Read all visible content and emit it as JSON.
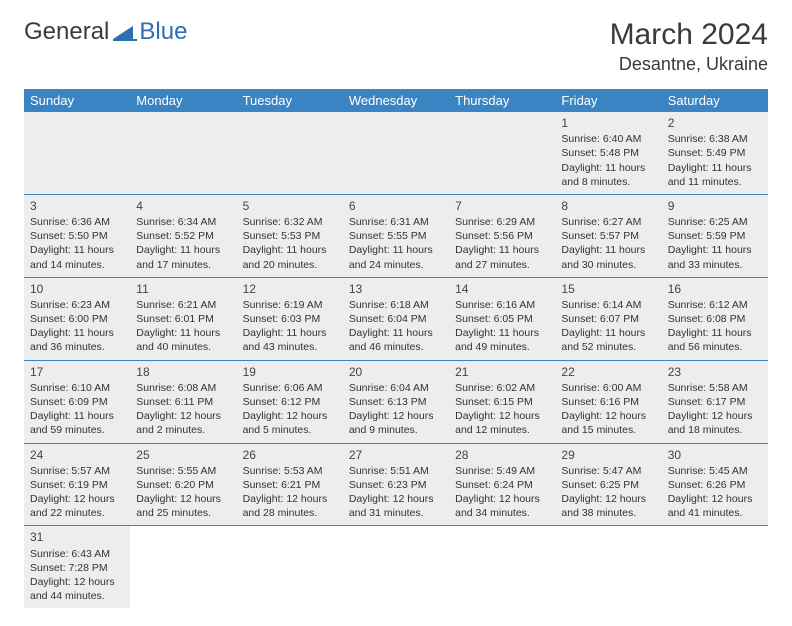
{
  "logo": {
    "text1": "General",
    "text2": "Blue",
    "accent_color": "#2e6fb0"
  },
  "title": "March 2024",
  "location": "Desantne, Ukraine",
  "header_bg": "#3a84c4",
  "cell_bg": "#eceded",
  "border_color": "#3a84c4",
  "weekdays": [
    "Sunday",
    "Monday",
    "Tuesday",
    "Wednesday",
    "Thursday",
    "Friday",
    "Saturday"
  ],
  "weeks": [
    [
      null,
      null,
      null,
      null,
      null,
      {
        "n": "1",
        "sr": "6:40 AM",
        "ss": "5:48 PM",
        "dl": "11 hours and 8 minutes."
      },
      {
        "n": "2",
        "sr": "6:38 AM",
        "ss": "5:49 PM",
        "dl": "11 hours and 11 minutes."
      }
    ],
    [
      {
        "n": "3",
        "sr": "6:36 AM",
        "ss": "5:50 PM",
        "dl": "11 hours and 14 minutes."
      },
      {
        "n": "4",
        "sr": "6:34 AM",
        "ss": "5:52 PM",
        "dl": "11 hours and 17 minutes."
      },
      {
        "n": "5",
        "sr": "6:32 AM",
        "ss": "5:53 PM",
        "dl": "11 hours and 20 minutes."
      },
      {
        "n": "6",
        "sr": "6:31 AM",
        "ss": "5:55 PM",
        "dl": "11 hours and 24 minutes."
      },
      {
        "n": "7",
        "sr": "6:29 AM",
        "ss": "5:56 PM",
        "dl": "11 hours and 27 minutes."
      },
      {
        "n": "8",
        "sr": "6:27 AM",
        "ss": "5:57 PM",
        "dl": "11 hours and 30 minutes."
      },
      {
        "n": "9",
        "sr": "6:25 AM",
        "ss": "5:59 PM",
        "dl": "11 hours and 33 minutes."
      }
    ],
    [
      {
        "n": "10",
        "sr": "6:23 AM",
        "ss": "6:00 PM",
        "dl": "11 hours and 36 minutes."
      },
      {
        "n": "11",
        "sr": "6:21 AM",
        "ss": "6:01 PM",
        "dl": "11 hours and 40 minutes."
      },
      {
        "n": "12",
        "sr": "6:19 AM",
        "ss": "6:03 PM",
        "dl": "11 hours and 43 minutes."
      },
      {
        "n": "13",
        "sr": "6:18 AM",
        "ss": "6:04 PM",
        "dl": "11 hours and 46 minutes."
      },
      {
        "n": "14",
        "sr": "6:16 AM",
        "ss": "6:05 PM",
        "dl": "11 hours and 49 minutes."
      },
      {
        "n": "15",
        "sr": "6:14 AM",
        "ss": "6:07 PM",
        "dl": "11 hours and 52 minutes."
      },
      {
        "n": "16",
        "sr": "6:12 AM",
        "ss": "6:08 PM",
        "dl": "11 hours and 56 minutes."
      }
    ],
    [
      {
        "n": "17",
        "sr": "6:10 AM",
        "ss": "6:09 PM",
        "dl": "11 hours and 59 minutes."
      },
      {
        "n": "18",
        "sr": "6:08 AM",
        "ss": "6:11 PM",
        "dl": "12 hours and 2 minutes."
      },
      {
        "n": "19",
        "sr": "6:06 AM",
        "ss": "6:12 PM",
        "dl": "12 hours and 5 minutes."
      },
      {
        "n": "20",
        "sr": "6:04 AM",
        "ss": "6:13 PM",
        "dl": "12 hours and 9 minutes."
      },
      {
        "n": "21",
        "sr": "6:02 AM",
        "ss": "6:15 PM",
        "dl": "12 hours and 12 minutes."
      },
      {
        "n": "22",
        "sr": "6:00 AM",
        "ss": "6:16 PM",
        "dl": "12 hours and 15 minutes."
      },
      {
        "n": "23",
        "sr": "5:58 AM",
        "ss": "6:17 PM",
        "dl": "12 hours and 18 minutes."
      }
    ],
    [
      {
        "n": "24",
        "sr": "5:57 AM",
        "ss": "6:19 PM",
        "dl": "12 hours and 22 minutes."
      },
      {
        "n": "25",
        "sr": "5:55 AM",
        "ss": "6:20 PM",
        "dl": "12 hours and 25 minutes."
      },
      {
        "n": "26",
        "sr": "5:53 AM",
        "ss": "6:21 PM",
        "dl": "12 hours and 28 minutes."
      },
      {
        "n": "27",
        "sr": "5:51 AM",
        "ss": "6:23 PM",
        "dl": "12 hours and 31 minutes."
      },
      {
        "n": "28",
        "sr": "5:49 AM",
        "ss": "6:24 PM",
        "dl": "12 hours and 34 minutes."
      },
      {
        "n": "29",
        "sr": "5:47 AM",
        "ss": "6:25 PM",
        "dl": "12 hours and 38 minutes."
      },
      {
        "n": "30",
        "sr": "5:45 AM",
        "ss": "6:26 PM",
        "dl": "12 hours and 41 minutes."
      }
    ],
    [
      {
        "n": "31",
        "sr": "6:43 AM",
        "ss": "7:28 PM",
        "dl": "12 hours and 44 minutes."
      },
      null,
      null,
      null,
      null,
      null,
      null
    ]
  ],
  "labels": {
    "sunrise": "Sunrise:",
    "sunset": "Sunset:",
    "daylight": "Daylight:"
  }
}
